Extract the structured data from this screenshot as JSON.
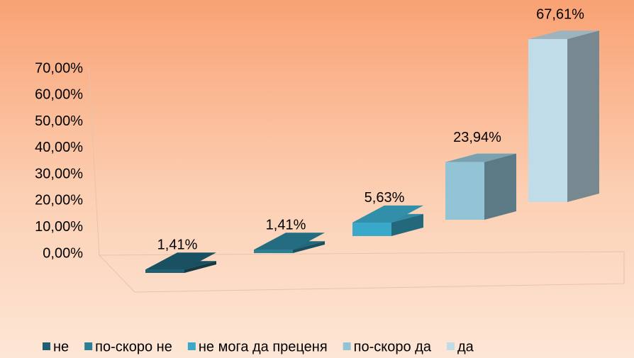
{
  "chart_data": {
    "type": "bar3d",
    "series": [
      {
        "name": "не",
        "color": "#1f5f73",
        "values": [
          1.41
        ],
        "value_labels": [
          "1,41%"
        ]
      },
      {
        "name": "по-скоро не",
        "color": "#2a7f96",
        "values": [
          1.41
        ],
        "value_labels": [
          "1,41%"
        ]
      },
      {
        "name": "не мога да преценя",
        "color": "#3aa8c8",
        "values": [
          5.63
        ],
        "value_labels": [
          "5,63%"
        ]
      },
      {
        "name": "по-скоро да",
        "color": "#93c4d6",
        "values": [
          23.94
        ],
        "value_labels": [
          "23,94%"
        ]
      },
      {
        "name": "да",
        "color": "#c0dce8",
        "values": [
          67.61
        ],
        "value_labels": [
          "67,61%"
        ]
      }
    ],
    "ylim": [
      0,
      70
    ],
    "yticks": [
      {
        "value": 0,
        "label": "0,00%"
      },
      {
        "value": 10,
        "label": "10,00%"
      },
      {
        "value": 20,
        "label": "20,00%"
      },
      {
        "value": 30,
        "label": "30,00%"
      },
      {
        "value": 40,
        "label": "40,00%"
      },
      {
        "value": 50,
        "label": "50,00%"
      },
      {
        "value": 60,
        "label": "60,00%"
      },
      {
        "value": 70,
        "label": "70,00%"
      }
    ],
    "legend": "bottom"
  }
}
